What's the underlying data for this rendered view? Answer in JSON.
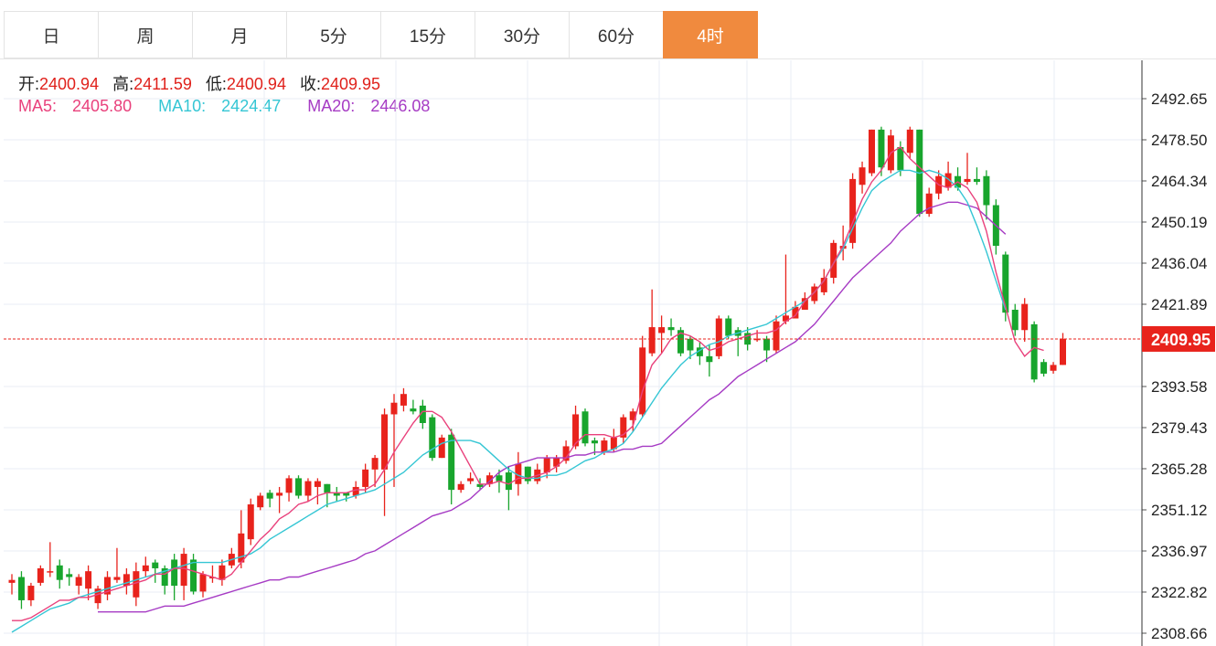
{
  "tabs": [
    {
      "label": "日",
      "active": false
    },
    {
      "label": "周",
      "active": false
    },
    {
      "label": "月",
      "active": false
    },
    {
      "label": "5分",
      "active": false
    },
    {
      "label": "15分",
      "active": false
    },
    {
      "label": "30分",
      "active": false
    },
    {
      "label": "60分",
      "active": false
    },
    {
      "label": "4时",
      "active": true
    }
  ],
  "ohlc_info": {
    "open_label": "开:",
    "open": "2400.94",
    "high_label": "高:",
    "high": "2411.59",
    "low_label": "低:",
    "low": "2400.94",
    "close_label": "收:",
    "close": "2409.95"
  },
  "ma_info": {
    "ma5_label": "MA5:",
    "ma5": "2405.80",
    "ma10_label": "MA10:",
    "ma10": "2424.47",
    "ma20_label": "MA20:",
    "ma20": "2446.08"
  },
  "colors": {
    "up": "#e8231c",
    "down": "#18a52d",
    "ma5": "#e9417c",
    "ma10": "#35c6d4",
    "ma20": "#a63bc4",
    "accent": "#f08a3e",
    "price_line": "#e8231c"
  },
  "chart_data": {
    "type": "candlestick",
    "y_ticks": [
      "2492.65",
      "2478.50",
      "2464.34",
      "2450.19",
      "2436.04",
      "2421.89",
      "2393.58",
      "2379.43",
      "2365.28",
      "2351.12",
      "2336.97",
      "2322.82",
      "2308.66"
    ],
    "ylim": [
      2305,
      2505
    ],
    "current_price": "2409.95",
    "grid": true,
    "candles": [
      [
        2326,
        2327,
        2329,
        2322
      ],
      [
        2328,
        2320,
        2330,
        2317
      ],
      [
        2320,
        2325,
        2326,
        2318
      ],
      [
        2326,
        2331,
        2332,
        2325
      ],
      [
        2330,
        2330,
        2340,
        2328
      ],
      [
        2332,
        2327,
        2334,
        2324
      ],
      [
        2329,
        2328,
        2331,
        2325
      ],
      [
        2325,
        2328,
        2329,
        2322
      ],
      [
        2324,
        2330,
        2332,
        2320
      ],
      [
        2319,
        2324,
        2325,
        2317
      ],
      [
        2322,
        2328,
        2330,
        2320
      ],
      [
        2327,
        2328,
        2338,
        2326
      ],
      [
        2325,
        2329,
        2331,
        2322
      ],
      [
        2321,
        2330,
        2333,
        2318
      ],
      [
        2330,
        2332,
        2335,
        2328
      ],
      [
        2333,
        2331,
        2334,
        2326
      ],
      [
        2331,
        2325,
        2332,
        2322
      ],
      [
        2334,
        2325,
        2336,
        2320
      ],
      [
        2325,
        2336,
        2338,
        2320
      ],
      [
        2334,
        2323,
        2336,
        2322
      ],
      [
        2323,
        2329,
        2330,
        2321
      ],
      [
        2328,
        2328,
        2332,
        2326
      ],
      [
        2327,
        2332,
        2334,
        2325
      ],
      [
        2332,
        2336,
        2338,
        2331
      ],
      [
        2333,
        2343,
        2351,
        2331
      ],
      [
        2341,
        2353,
        2355,
        2339
      ],
      [
        2352,
        2356,
        2357,
        2351
      ],
      [
        2357,
        2355,
        2358,
        2352
      ],
      [
        2356,
        2357,
        2359,
        2350
      ],
      [
        2357,
        2362,
        2363,
        2354
      ],
      [
        2362,
        2356,
        2363,
        2355
      ],
      [
        2356,
        2361,
        2362,
        2354
      ],
      [
        2359,
        2361,
        2362,
        2353
      ],
      [
        2360,
        2357,
        2360,
        2352
      ],
      [
        2357,
        2356,
        2359,
        2354
      ],
      [
        2357,
        2356,
        2357,
        2354
      ],
      [
        2356,
        2359,
        2361,
        2355
      ],
      [
        2359,
        2365,
        2367,
        2357
      ],
      [
        2365,
        2369,
        2370,
        2359
      ],
      [
        2365,
        2384,
        2386,
        2349
      ],
      [
        2384,
        2388,
        2391,
        2359
      ],
      [
        2387,
        2391,
        2393,
        2385
      ],
      [
        2386,
        2385,
        2389,
        2384
      ],
      [
        2387,
        2381,
        2389,
        2379
      ],
      [
        2383,
        2369,
        2384,
        2368
      ],
      [
        2369,
        2376,
        2377,
        2369
      ],
      [
        2377,
        2358,
        2379,
        2353
      ],
      [
        2358,
        2360,
        2361,
        2357
      ],
      [
        2361,
        2362,
        2364,
        2360
      ],
      [
        2360,
        2359,
        2362,
        2358
      ],
      [
        2360,
        2363,
        2364,
        2359
      ],
      [
        2363,
        2361,
        2365,
        2357
      ],
      [
        2364,
        2358,
        2366,
        2351
      ],
      [
        2360,
        2367,
        2371,
        2356
      ],
      [
        2366,
        2361,
        2366,
        2360
      ],
      [
        2361,
        2365,
        2367,
        2360
      ],
      [
        2364,
        2369,
        2370,
        2362
      ],
      [
        2366,
        2369,
        2370,
        2364
      ],
      [
        2368,
        2373,
        2375,
        2367
      ],
      [
        2373,
        2384,
        2387,
        2372
      ],
      [
        2385,
        2374,
        2386,
        2373
      ],
      [
        2375,
        2374,
        2376,
        2370
      ],
      [
        2371,
        2375,
        2376,
        2370
      ],
      [
        2372,
        2376,
        2379,
        2371
      ],
      [
        2376,
        2383,
        2384,
        2374
      ],
      [
        2382,
        2385,
        2386,
        2378
      ],
      [
        2384,
        2407,
        2411,
        2383
      ],
      [
        2405,
        2414,
        2427,
        2404
      ],
      [
        2412,
        2414,
        2418,
        2405
      ],
      [
        2414,
        2413,
        2417,
        2411
      ],
      [
        2413,
        2405,
        2414,
        2404
      ],
      [
        2410,
        2406,
        2411,
        2403
      ],
      [
        2407,
        2404,
        2409,
        2401
      ],
      [
        2404,
        2402,
        2408,
        2397
      ],
      [
        2404,
        2417,
        2418,
        2403
      ],
      [
        2417,
        2411,
        2418,
        2410
      ],
      [
        2413,
        2411,
        2414,
        2404
      ],
      [
        2412,
        2408,
        2414,
        2406
      ],
      [
        2410,
        2410,
        2413,
        2409
      ],
      [
        2410,
        2406,
        2411,
        2402
      ],
      [
        2406,
        2416,
        2418,
        2405
      ],
      [
        2416,
        2418,
        2439,
        2415
      ],
      [
        2417,
        2421,
        2423,
        2418
      ],
      [
        2420,
        2424,
        2426,
        2421
      ],
      [
        2423,
        2428,
        2429,
        2422
      ],
      [
        2426,
        2431,
        2434,
        2425
      ],
      [
        2431,
        2443,
        2444,
        2429
      ],
      [
        2441,
        2442,
        2449,
        2437
      ],
      [
        2443,
        2465,
        2467,
        2441
      ],
      [
        2463,
        2469,
        2471,
        2460
      ],
      [
        2467,
        2482,
        2482,
        2466
      ],
      [
        2482,
        2469,
        2483,
        2466
      ],
      [
        2468,
        2480,
        2482,
        2467
      ],
      [
        2476,
        2468,
        2478,
        2466
      ],
      [
        2474,
        2482,
        2483,
        2472
      ],
      [
        2482,
        2453,
        2482,
        2452
      ],
      [
        2453,
        2460,
        2462,
        2452
      ],
      [
        2460,
        2466,
        2468,
        2458
      ],
      [
        2462,
        2467,
        2471,
        2461
      ],
      [
        2466,
        2462,
        2469,
        2461
      ],
      [
        2464,
        2465,
        2474,
        2463
      ],
      [
        2465,
        2464,
        2469,
        2463
      ],
      [
        2466,
        2456,
        2468,
        2451
      ],
      [
        2456,
        2442,
        2458,
        2439
      ],
      [
        2439,
        2419,
        2440,
        2416
      ],
      [
        2420,
        2413,
        2422,
        2411
      ],
      [
        2413,
        2422,
        2424,
        2409
      ],
      [
        2415,
        2396,
        2416,
        2395
      ],
      [
        2402,
        2398,
        2403,
        2397
      ],
      [
        2399,
        2401,
        2402,
        2398
      ],
      [
        2401,
        2410,
        2412,
        2401
      ]
    ],
    "ma5": [
      2313,
      2313,
      2314,
      2316,
      2318,
      2320,
      2320,
      2321,
      2321,
      2322,
      2323,
      2324,
      2325,
      2326,
      2327,
      2329,
      2329,
      2331,
      2331,
      2330,
      2329,
      2328,
      2327,
      2329,
      2333,
      2337,
      2341,
      2344,
      2348,
      2350,
      2353,
      2354,
      2356,
      2357,
      2357,
      2357,
      2358,
      2358,
      2360,
      2365,
      2371,
      2376,
      2381,
      2385,
      2385,
      2383,
      2378,
      2372,
      2366,
      2360,
      2360,
      2361,
      2360,
      2362,
      2362,
      2363,
      2364,
      2366,
      2369,
      2374,
      2377,
      2377,
      2377,
      2376,
      2377,
      2380,
      2392,
      2401,
      2405,
      2410,
      2412,
      2411,
      2409,
      2406,
      2407,
      2409,
      2410,
      2411,
      2412,
      2412,
      2413,
      2416,
      2418,
      2423,
      2426,
      2430,
      2436,
      2442,
      2450,
      2458,
      2464,
      2468,
      2474,
      2476,
      2472,
      2469,
      2466,
      2463,
      2462,
      2464,
      2462,
      2457,
      2447,
      2433,
      2421,
      2409,
      2404,
      2407,
      2406
    ],
    "ma10": [
      2309,
      2311,
      2313,
      2315,
      2317,
      2318,
      2319,
      2321,
      2322,
      2323,
      2324,
      2325,
      2326,
      2327,
      2328,
      2329,
      2330,
      2331,
      2332,
      2333,
      2333,
      2333,
      2333,
      2334,
      2335,
      2336,
      2338,
      2341,
      2343,
      2345,
      2347,
      2349,
      2351,
      2353,
      2354,
      2355,
      2356,
      2357,
      2358,
      2360,
      2362,
      2364,
      2367,
      2370,
      2372,
      2374,
      2375,
      2375,
      2375,
      2374,
      2371,
      2368,
      2365,
      2363,
      2362,
      2362,
      2363,
      2363,
      2364,
      2366,
      2368,
      2369,
      2371,
      2372,
      2374,
      2378,
      2383,
      2388,
      2393,
      2397,
      2401,
      2404,
      2406,
      2408,
      2409,
      2411,
      2412,
      2413,
      2414,
      2415,
      2417,
      2419,
      2421,
      2423,
      2426,
      2430,
      2436,
      2441,
      2448,
      2455,
      2461,
      2464,
      2466,
      2468,
      2468,
      2467,
      2468,
      2467,
      2465,
      2462,
      2457,
      2449,
      2440,
      2430,
      2420
    ],
    "ma20": [
      2316,
      2316,
      2316,
      2316,
      2316,
      2316,
      2317,
      2318,
      2318,
      2318,
      2319,
      2320,
      2321,
      2322,
      2323,
      2324,
      2325,
      2326,
      2327,
      2327,
      2328,
      2328,
      2329,
      2330,
      2331,
      2332,
      2333,
      2334,
      2336,
      2337,
      2339,
      2341,
      2343,
      2345,
      2347,
      2349,
      2350,
      2351,
      2353,
      2355,
      2358,
      2361,
      2364,
      2366,
      2367,
      2368,
      2369,
      2369,
      2369,
      2369,
      2370,
      2370,
      2371,
      2371,
      2371,
      2372,
      2372,
      2373,
      2373,
      2374,
      2377,
      2380,
      2383,
      2386,
      2389,
      2391,
      2394,
      2397,
      2399,
      2401,
      2403,
      2405,
      2407,
      2409,
      2412,
      2415,
      2419,
      2423,
      2427,
      2431,
      2434,
      2437,
      2440,
      2443,
      2447,
      2450,
      2453,
      2455,
      2456,
      2457,
      2457,
      2456,
      2455,
      2452,
      2449,
      2446
    ],
    "ma5_start": 0,
    "ma10_start": 0,
    "ma20_start": 9
  }
}
